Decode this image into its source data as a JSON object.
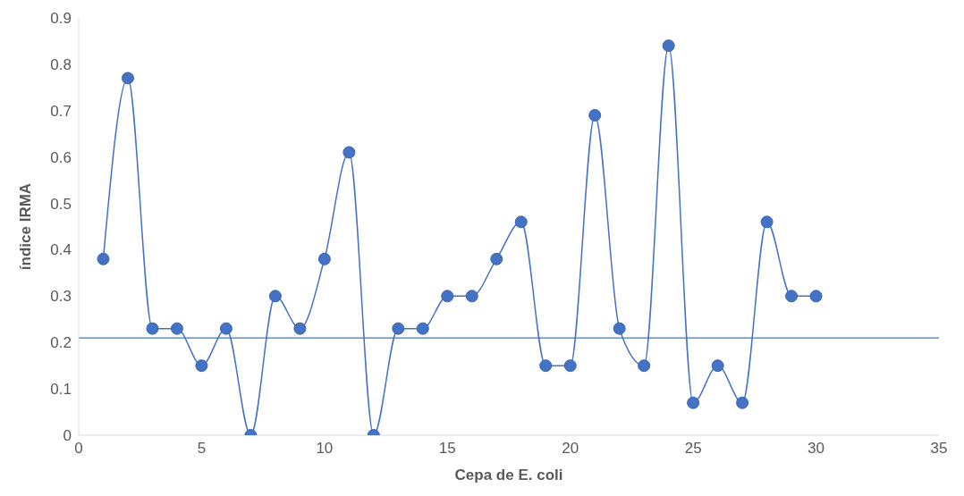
{
  "chart_data": {
    "type": "line",
    "xlabel": "Cepa de E. coli",
    "ylabel": "índice IRMA",
    "x": [
      1,
      2,
      3,
      4,
      5,
      6,
      7,
      8,
      9,
      10,
      11,
      12,
      13,
      14,
      15,
      16,
      17,
      18,
      19,
      20,
      21,
      22,
      23,
      24,
      25,
      26,
      27,
      28,
      29,
      30
    ],
    "series": [
      {
        "color": "#4472c4",
        "values": [
          0.38,
          0.77,
          0.23,
          0.23,
          0.15,
          0.23,
          0,
          0.3,
          0.23,
          0.38,
          0.61,
          0,
          0.23,
          0.23,
          0.3,
          0.3,
          0.38,
          0.46,
          0.15,
          0.15,
          0.69,
          0.23,
          0.15,
          0.84,
          0.07,
          0.15,
          0.07,
          0.46,
          0.3,
          0.3
        ]
      }
    ],
    "xlim": [
      0,
      35
    ],
    "xticks": [
      0,
      5,
      10,
      15,
      20,
      25,
      30,
      35
    ],
    "ylim": [
      0,
      0.9
    ],
    "yticks": [
      0,
      0.1,
      0.2,
      0.3,
      0.4,
      0.5,
      0.6,
      0.7,
      0.8,
      0.9
    ],
    "ref_lines": [
      {
        "axis": "y",
        "value": 0.21,
        "color": "#4472c4"
      }
    ],
    "grid": false,
    "legend": false,
    "marker": "circle",
    "line_style": "solid"
  }
}
